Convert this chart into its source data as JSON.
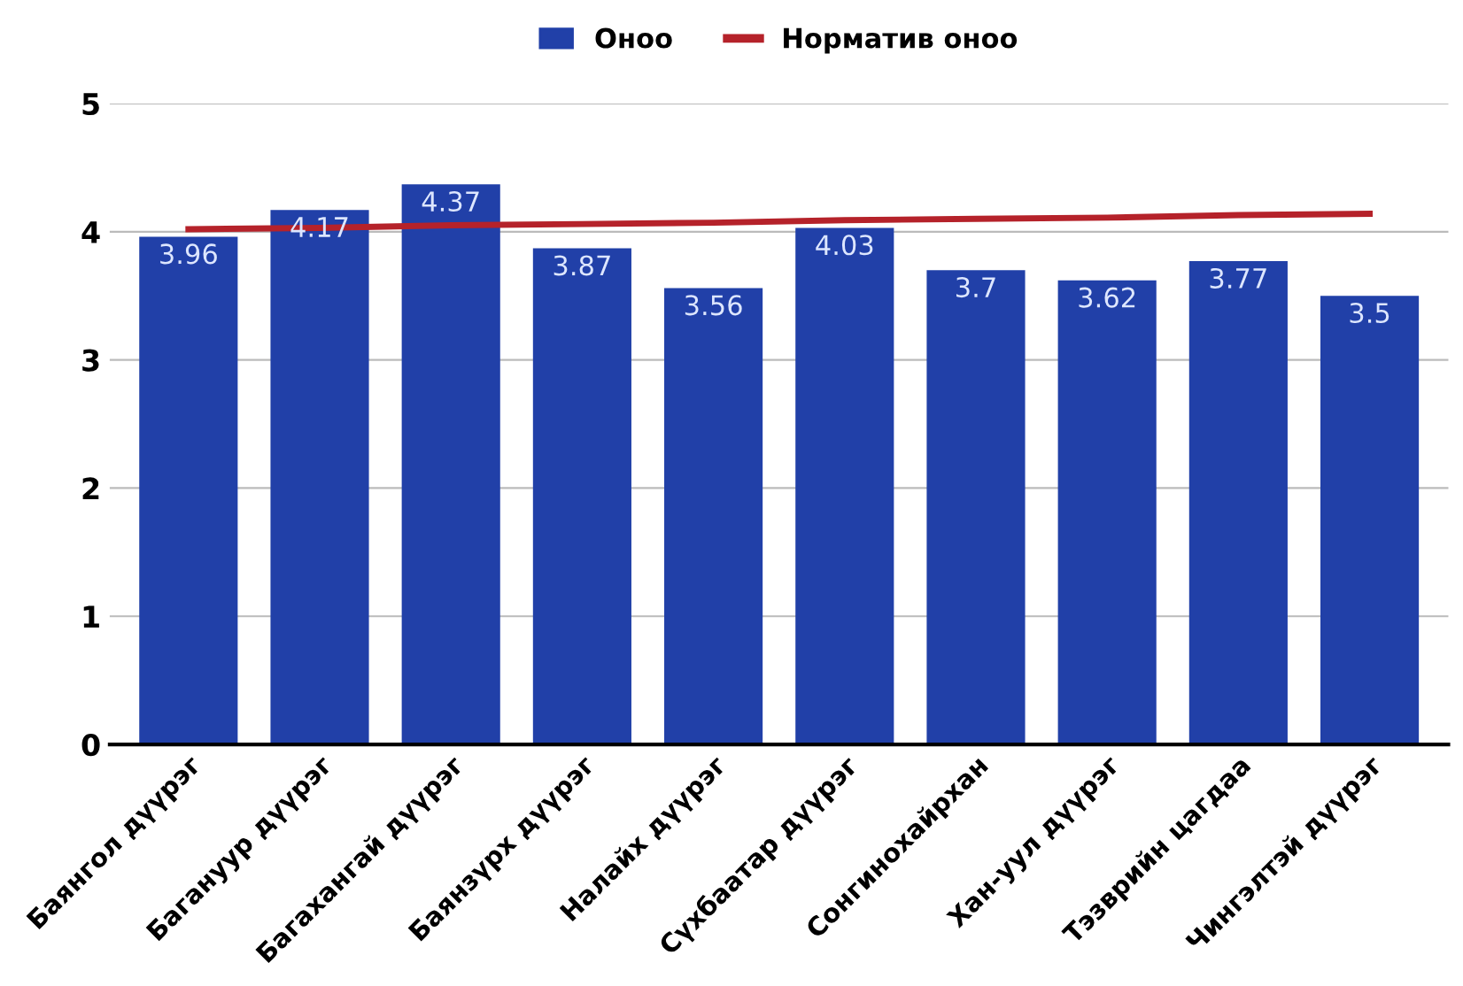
{
  "chart_data": {
    "type": "bar",
    "categories": [
      "Баянгол дүүрэг",
      "Багануур дүүрэг",
      "Багахангай дүүрэг",
      "Баянзүрх дүүрэг",
      "Налайх дүүрэг",
      "Сүхбаатар дүүрэг",
      "Сонгинохайрхан",
      "Хан-уул дүүрэг",
      "Тэзврийн цагдаа",
      "Чингэлтэй дүүрэг"
    ],
    "series": [
      {
        "name": "Оноо",
        "color": "#2140a8",
        "values": [
          3.96,
          4.17,
          4.37,
          3.87,
          3.56,
          4.03,
          3.7,
          3.62,
          3.77,
          3.5
        ],
        "value_labels": [
          "3.96",
          "4.17",
          "4.37",
          "3.87",
          "3.56",
          "4.03",
          "3.7",
          "3.62",
          "3.77",
          "3.5"
        ]
      },
      {
        "name": "Норматив оноо",
        "type": "line",
        "color": "#b5222a",
        "values": [
          4.02,
          4.03,
          4.05,
          4.06,
          4.07,
          4.09,
          4.1,
          4.11,
          4.13,
          4.14
        ]
      }
    ],
    "ylim": [
      0,
      5
    ],
    "yticks": [
      0,
      1,
      2,
      3,
      4,
      5
    ],
    "grid": "y",
    "legend": "top",
    "marker": "none",
    "line_style": "solid"
  }
}
